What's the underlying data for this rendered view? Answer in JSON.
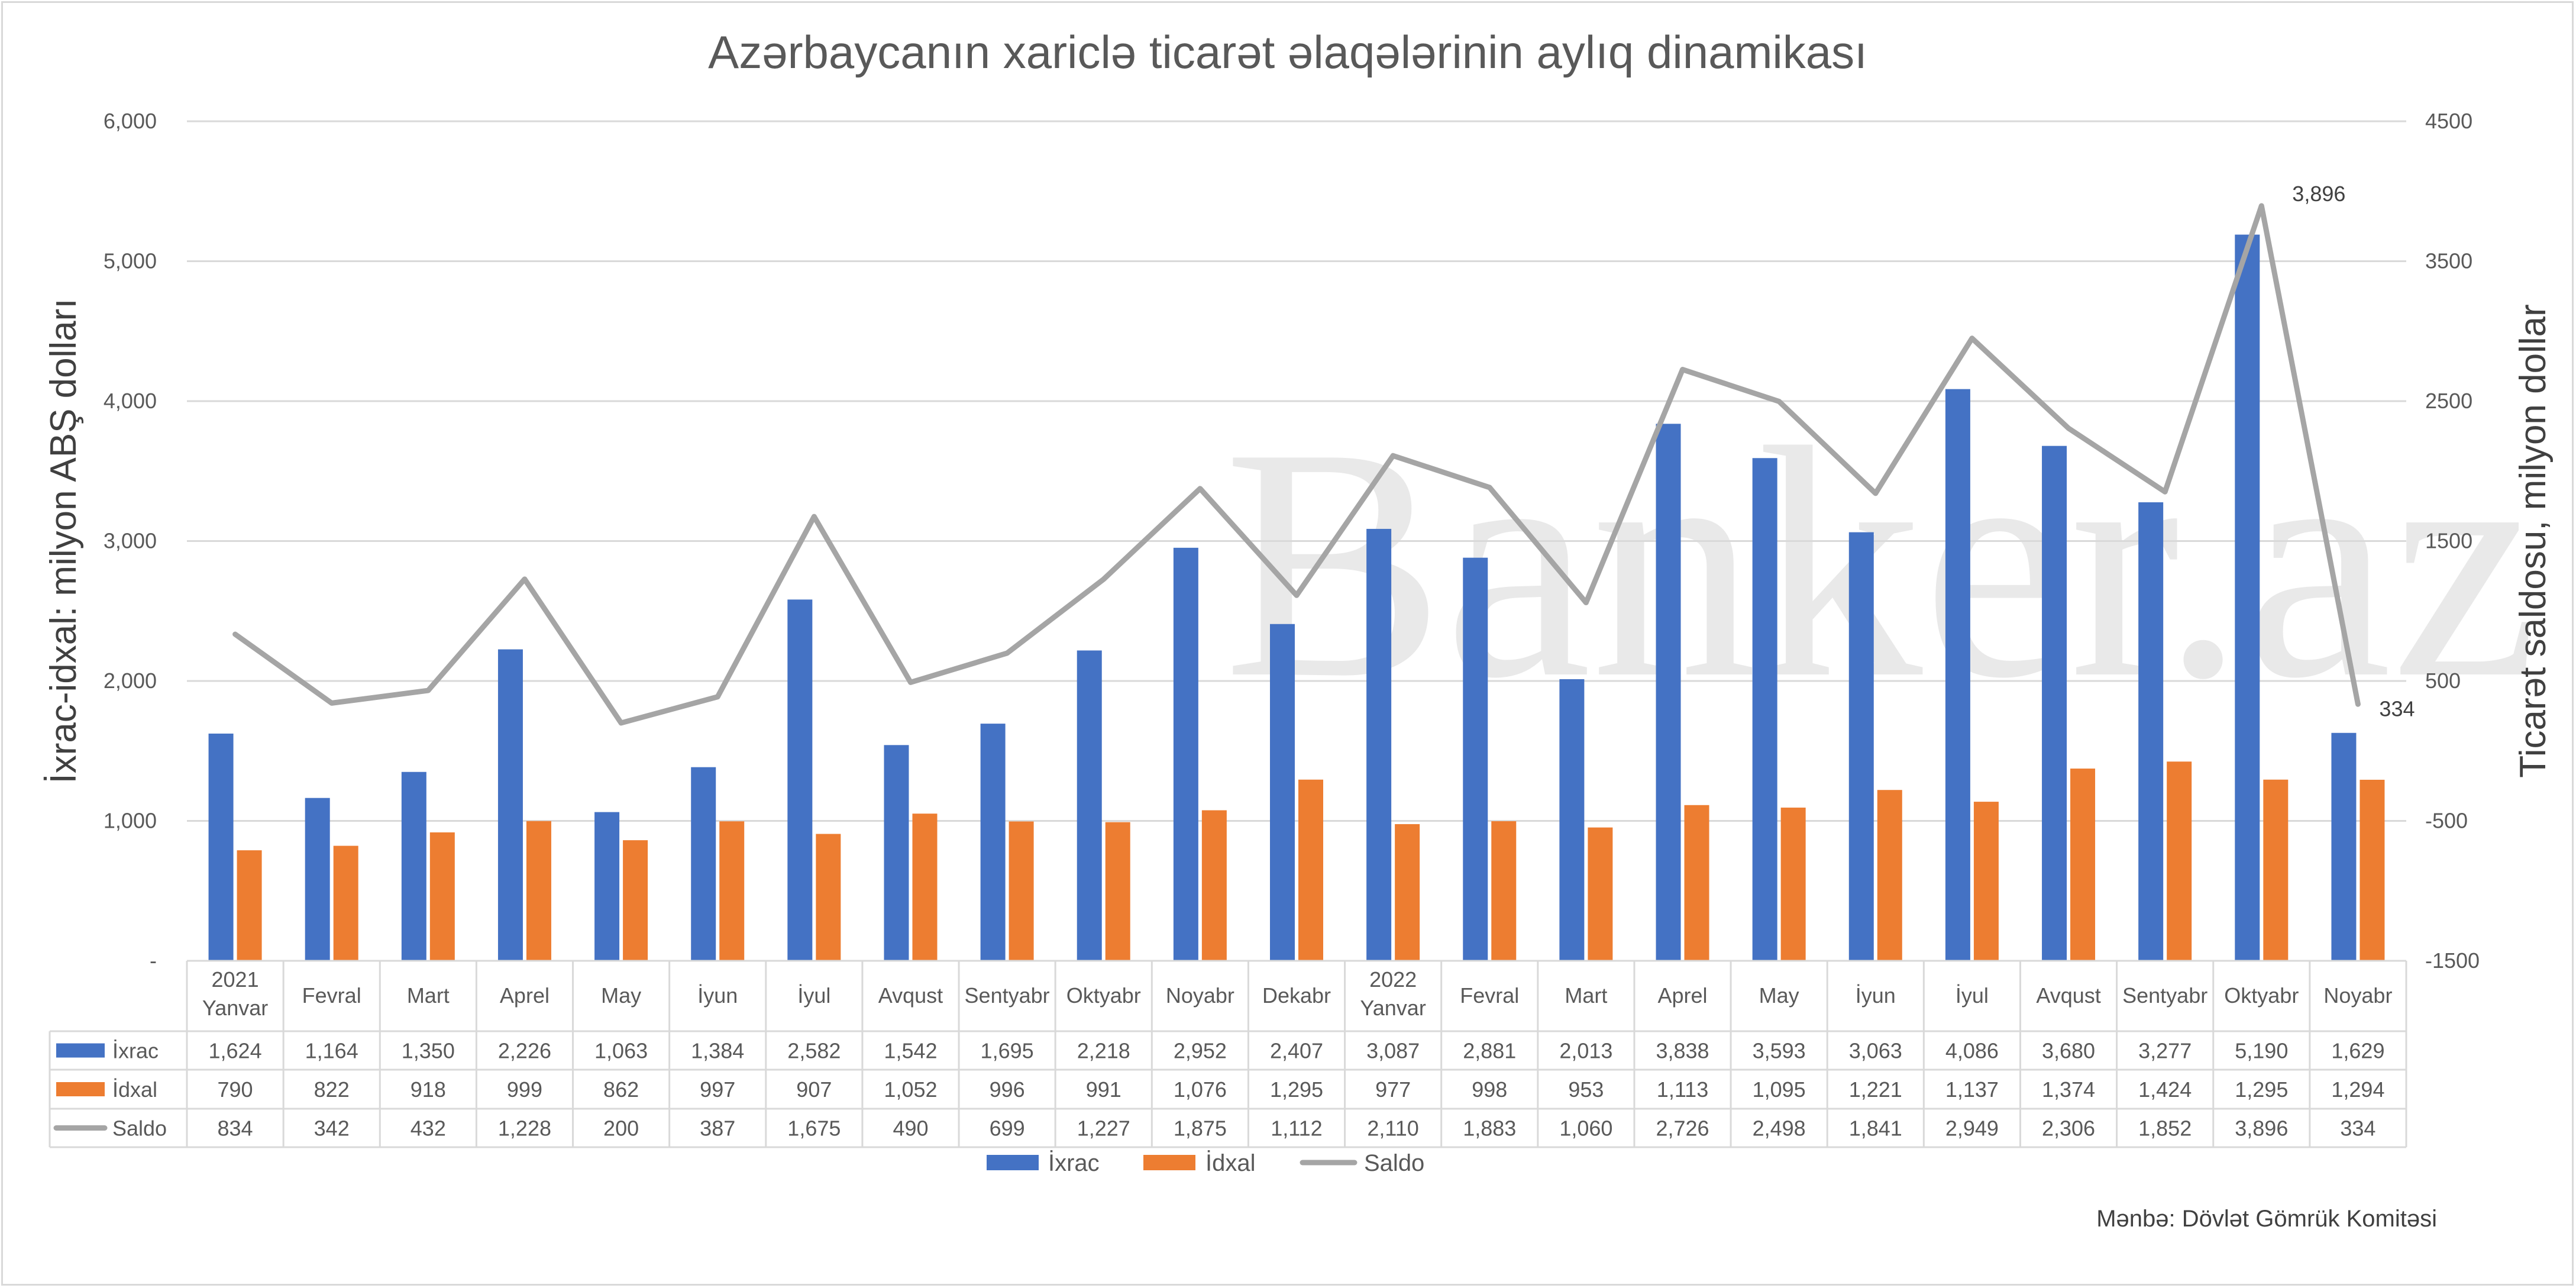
{
  "chart_data": {
    "type": "bar",
    "title": "Azərbaycanın xariclə ticarət əlaqələrinin aylıq dinamikası",
    "ylabel_left": "İxrac-idxal: milyon ABŞ dolları",
    "ylabel_right": "Ticarət saldosu, milyon dollar",
    "ylim_left": [
      0,
      6000
    ],
    "ylim_right": [
      -1500,
      4500
    ],
    "left_ticks": [
      "-",
      "1,000",
      "2,000",
      "3,000",
      "4,000",
      "5,000",
      "6,000"
    ],
    "right_ticks": [
      "-1500",
      "-500",
      "500",
      "1500",
      "2500",
      "3500",
      "4500"
    ],
    "grid": true,
    "legend_position": "bottom",
    "watermark": "Banker.az",
    "categories": [
      [
        "2021",
        "Yanvar"
      ],
      [
        "Fevral"
      ],
      [
        "Mart"
      ],
      [
        "Aprel"
      ],
      [
        "May"
      ],
      [
        "İyun"
      ],
      [
        "İyul"
      ],
      [
        "Avqust"
      ],
      [
        "Sentyabr"
      ],
      [
        "Oktyabr"
      ],
      [
        "Noyabr"
      ],
      [
        "Dekabr"
      ],
      [
        "2022",
        "Yanvar"
      ],
      [
        "Fevral"
      ],
      [
        "Mart"
      ],
      [
        "Aprel"
      ],
      [
        "May"
      ],
      [
        "İyun"
      ],
      [
        "İyul"
      ],
      [
        "Avqust"
      ],
      [
        "Sentyabr"
      ],
      [
        "Oktyabr"
      ],
      [
        "Noyabr"
      ]
    ],
    "series": [
      {
        "name": "İxrac",
        "kind": "bar",
        "axis": "left",
        "color": "#4472c4",
        "values": [
          1624,
          1164,
          1350,
          2226,
          1063,
          1384,
          2582,
          1542,
          1695,
          2218,
          2952,
          2407,
          3087,
          2881,
          2013,
          3838,
          3593,
          3063,
          4086,
          3680,
          3277,
          5190,
          1629
        ],
        "labels": [
          "1,624",
          "1,164",
          "1,350",
          "2,226",
          "1,063",
          "1,384",
          "2,582",
          "1,542",
          "1,695",
          "2,218",
          "2,952",
          "2,407",
          "3,087",
          "2,881",
          "2,013",
          "3,838",
          "3,593",
          "3,063",
          "4,086",
          "3,680",
          "3,277",
          "5,190",
          "1,629"
        ]
      },
      {
        "name": "İdxal",
        "kind": "bar",
        "axis": "left",
        "color": "#ed7d31",
        "values": [
          790,
          822,
          918,
          999,
          862,
          997,
          907,
          1052,
          996,
          991,
          1076,
          1295,
          977,
          998,
          953,
          1113,
          1095,
          1221,
          1137,
          1374,
          1424,
          1295,
          1294
        ],
        "labels": [
          "790",
          "822",
          "918",
          "999",
          "862",
          "997",
          "907",
          "1,052",
          "996",
          "991",
          "1,076",
          "1,295",
          "977",
          "998",
          "953",
          "1,113",
          "1,095",
          "1,221",
          "1,137",
          "1,374",
          "1,424",
          "1,295",
          "1,294"
        ]
      },
      {
        "name": "Saldo",
        "kind": "line",
        "axis": "right",
        "color": "#a5a5a5",
        "values": [
          834,
          342,
          432,
          1228,
          200,
          387,
          1675,
          490,
          699,
          1227,
          1875,
          1112,
          2110,
          1883,
          1060,
          2726,
          2498,
          1841,
          2949,
          2306,
          1852,
          3896,
          334
        ],
        "labels": [
          "834",
          "342",
          "432",
          "1,228",
          "200",
          "387",
          "1,675",
          "490",
          "699",
          "1,227",
          "1,875",
          "1,112",
          "2,110",
          "1,883",
          "1,060",
          "2,726",
          "2,498",
          "1,841",
          "2,949",
          "2,306",
          "1,852",
          "3,896",
          "334"
        ]
      }
    ],
    "annotations": [
      {
        "series": "Saldo",
        "index": 21,
        "text": "3,896"
      },
      {
        "series": "Saldo",
        "index": 22,
        "text": "334"
      }
    ],
    "source": "Mənbə: Dövlət Gömrük Komitəsi"
  }
}
